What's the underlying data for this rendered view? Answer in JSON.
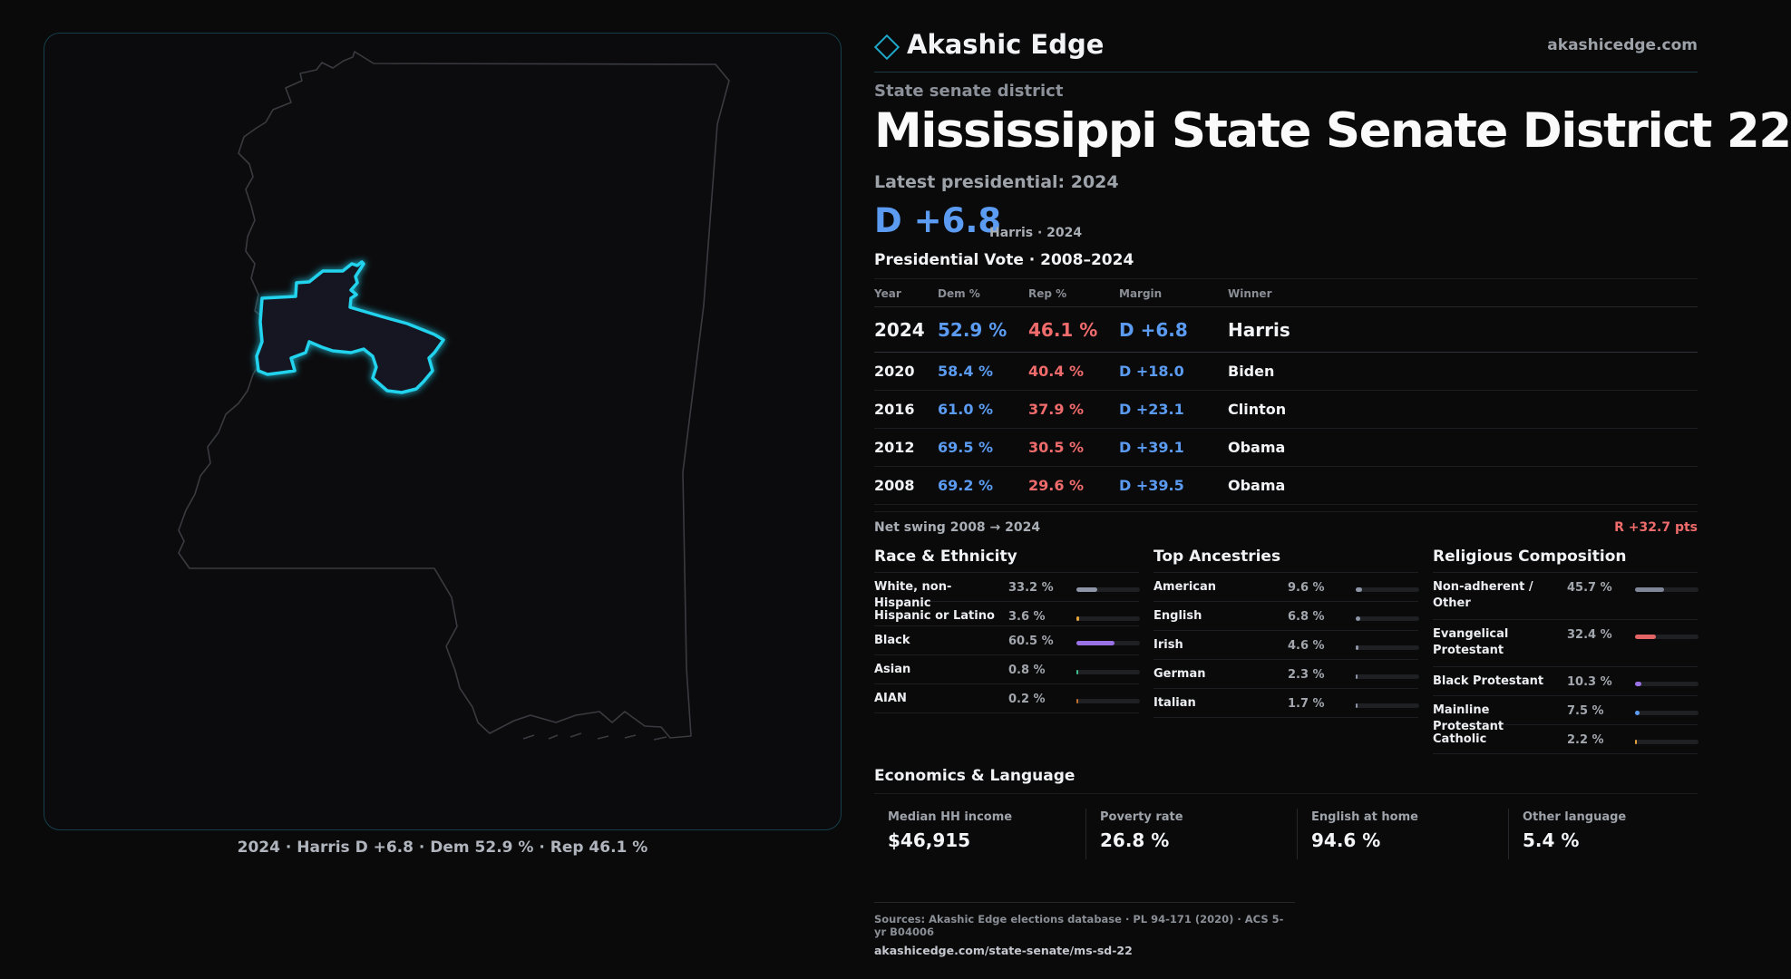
{
  "brand": {
    "name": "Akashic Edge",
    "url": "akashicedge.com"
  },
  "header": {
    "kicker": "State senate district",
    "title": "Mississippi State Senate District 22",
    "latest_label": "Latest presidential: 2024",
    "margin": "D +6.8",
    "margin_sub": "Harris · 2024"
  },
  "map": {
    "caption": "2024 · Harris D +6.8 · Dem 52.9 % · Rep 46.1 %"
  },
  "presidential": {
    "title": "Presidential Vote · 2008–2024",
    "headers": {
      "year": "Year",
      "dem": "Dem %",
      "rep": "Rep %",
      "margin": "Margin",
      "winner": "Winner"
    },
    "rows": [
      {
        "year": "2024",
        "dem": "52.9 %",
        "rep": "46.1 %",
        "margin": "D +6.8",
        "winner": "Harris"
      },
      {
        "year": "2020",
        "dem": "58.4 %",
        "rep": "40.4 %",
        "margin": "D +18.0",
        "winner": "Biden"
      },
      {
        "year": "2016",
        "dem": "61.0 %",
        "rep": "37.9 %",
        "margin": "D +23.1",
        "winner": "Clinton"
      },
      {
        "year": "2012",
        "dem": "69.5 %",
        "rep": "30.5 %",
        "margin": "D +39.1",
        "winner": "Obama"
      },
      {
        "year": "2008",
        "dem": "69.2 %",
        "rep": "29.6 %",
        "margin": "D +39.5",
        "winner": "Obama"
      }
    ],
    "swing_label": "Net swing 2008 → 2024",
    "swing_value": "R +32.7 pts"
  },
  "race": {
    "title": "Race & Ethnicity",
    "rows": [
      {
        "label": "White, non-Hispanic",
        "value": "33.2 %",
        "pct": 33.2,
        "color": "#8d95a6"
      },
      {
        "label": "Hispanic or Latino",
        "value": "3.6 %",
        "pct": 3.6,
        "color": "#e3a23b"
      },
      {
        "label": "Black",
        "value": "60.5 %",
        "pct": 60.5,
        "color": "#9a72e6"
      },
      {
        "label": "Asian",
        "value": "0.8 %",
        "pct": 0.8,
        "color": "#3fbf8f"
      },
      {
        "label": "AIAN",
        "value": "0.2 %",
        "pct": 0.2,
        "color": "#c2702f"
      }
    ]
  },
  "ancestry": {
    "title": "Top Ancestries",
    "rows": [
      {
        "label": "American",
        "value": "9.6 %",
        "pct": 9.6,
        "color": "#8d95a6"
      },
      {
        "label": "English",
        "value": "6.8 %",
        "pct": 6.8,
        "color": "#8d95a6"
      },
      {
        "label": "Irish",
        "value": "4.6 %",
        "pct": 4.6,
        "color": "#8d95a6"
      },
      {
        "label": "German",
        "value": "2.3 %",
        "pct": 2.3,
        "color": "#8d95a6"
      },
      {
        "label": "Italian",
        "value": "1.7 %",
        "pct": 1.7,
        "color": "#8d95a6"
      }
    ]
  },
  "religion": {
    "title": "Religious Composition",
    "rows": [
      {
        "label": "Non-adherent / Other",
        "value": "45.7 %",
        "pct": 45.7,
        "color": "#7e8698"
      },
      {
        "label": "Evangelical Protestant",
        "value": "32.4 %",
        "pct": 32.4,
        "color": "#e36464"
      },
      {
        "label": "Black Protestant",
        "value": "10.3 %",
        "pct": 10.3,
        "color": "#9a72e6"
      },
      {
        "label": "Mainline Protestant",
        "value": "7.5 %",
        "pct": 7.5,
        "color": "#5b9cf2"
      },
      {
        "label": "Catholic",
        "value": "2.2 %",
        "pct": 2.2,
        "color": "#e3a23b"
      }
    ]
  },
  "economics": {
    "title": "Economics & Language",
    "cells": [
      {
        "label": "Median HH income",
        "value": "$46,915"
      },
      {
        "label": "Poverty rate",
        "value": "26.8 %"
      },
      {
        "label": "English at home",
        "value": "94.6 %"
      },
      {
        "label": "Other language",
        "value": "5.4 %"
      }
    ]
  },
  "sources": {
    "line1": "Sources: Akashic Edge elections database · PL 94-171 (2020) · ACS 5-yr B04006",
    "link": "akashicedge.com/state-senate/ms-sd-22"
  }
}
